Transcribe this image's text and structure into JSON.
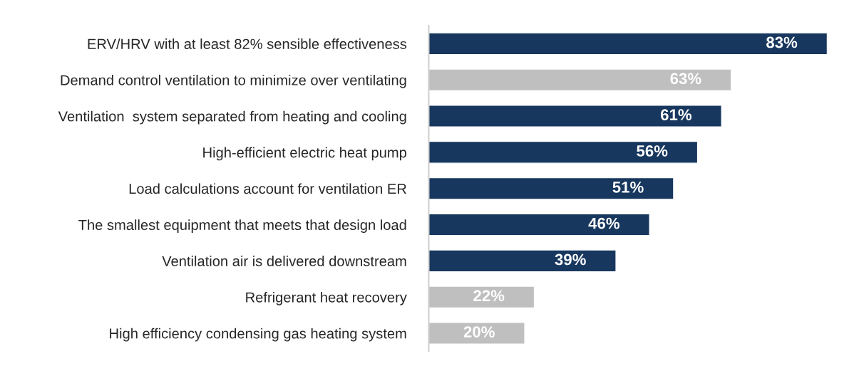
{
  "chart_data": {
    "type": "bar",
    "orientation": "horizontal",
    "categories": [
      "ERV/HRV with at least 82% sensible effectiveness",
      "Demand control ventilation to minimize over ventilating",
      "Ventilation  system separated from heating and cooling",
      "High-efficient electric heat pump",
      "Load calculations account for ventilation ER",
      "The smallest equipment that meets that design load",
      "Ventilation air is delivered downstream",
      "Refrigerant heat recovery",
      "High efficiency condensing gas heating system"
    ],
    "values": [
      83,
      63,
      61,
      56,
      51,
      46,
      39,
      22,
      20
    ],
    "colors": [
      "#17375e",
      "#bfbfbf",
      "#17375e",
      "#17375e",
      "#17375e",
      "#17375e",
      "#17375e",
      "#bfbfbf",
      "#bfbfbf"
    ],
    "value_labels": [
      "83%",
      "63%",
      "61%",
      "56%",
      "51%",
      "46%",
      "39%",
      "22%",
      "20%"
    ],
    "grid": false,
    "legend": false
  }
}
